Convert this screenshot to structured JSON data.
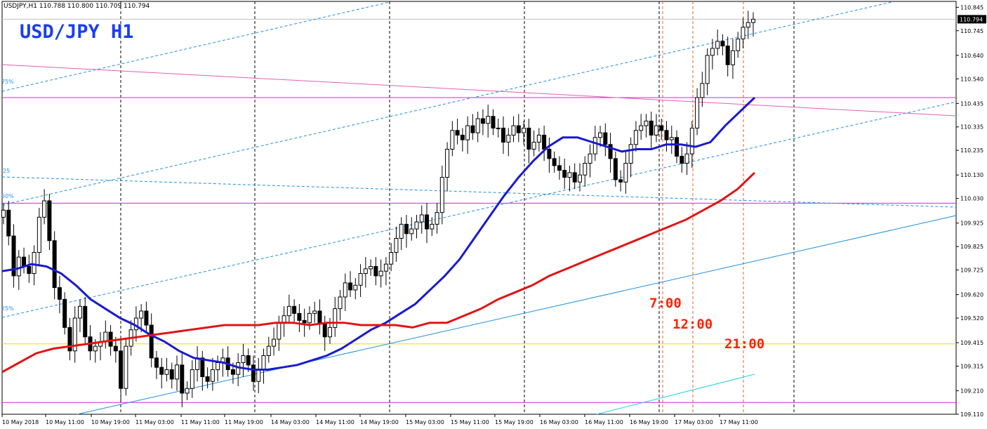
{
  "header": {
    "symbol_line": "USDJPY,H1  110.788 110.800 110.709 110.794",
    "big_title": "USD/JPY  H1"
  },
  "annotations": {
    "t1": "7:00",
    "t2": "12:00",
    "t3": "21:00",
    "fib_75": "75%",
    "fib_25a": "25",
    "fib_50": "50%",
    "fib_25b": "25%"
  },
  "colors": {
    "ma_fast": "#1a1acd",
    "ma_slow": "#e01414",
    "magenta": "#e020e0",
    "pink": "#e060b0",
    "yellow": "#e8e000",
    "grid_dash": "#000000",
    "red_dash": "#e06030",
    "channel": "#1e8fe0",
    "cyan": "#20d0e8"
  },
  "chart_data": {
    "type": "candlestick",
    "symbol": "USDJPY",
    "timeframe": "H1",
    "ohlc_last": {
      "open": 110.788,
      "high": 110.8,
      "low": 110.709,
      "close": 110.794
    },
    "current_price": 110.794,
    "ylim": [
      109.11,
      110.87
    ],
    "y_ticks": [
      110.845,
      110.745,
      110.64,
      110.54,
      110.435,
      110.335,
      110.235,
      110.13,
      110.03,
      109.925,
      109.825,
      109.725,
      109.62,
      109.52,
      109.415,
      109.315,
      109.21,
      109.11
    ],
    "x_tick_labels": [
      "10 May 2018",
      "10 May 11:00",
      "10 May 19:00",
      "11 May 03:00",
      "11 May 11:00",
      "11 May 19:00",
      "14 May 03:00",
      "14 May 11:00",
      "14 May 19:00",
      "15 May 03:00",
      "15 May 11:00",
      "15 May 19:00",
      "16 May 03:00",
      "16 May 11:00",
      "16 May 19:00",
      "17 May 03:00",
      "17 May 11:00"
    ],
    "closes": [
      109.98,
      109.87,
      109.7,
      109.78,
      109.74,
      109.71,
      109.8,
      109.95,
      110.02,
      109.85,
      109.65,
      109.6,
      109.48,
      109.38,
      109.52,
      109.57,
      109.44,
      109.38,
      109.4,
      109.42,
      109.46,
      109.4,
      109.38,
      109.22,
      109.4,
      109.47,
      109.52,
      109.55,
      109.49,
      109.35,
      109.31,
      109.28,
      109.3,
      109.26,
      109.32,
      109.2,
      109.22,
      109.3,
      109.35,
      109.27,
      109.25,
      109.3,
      109.33,
      109.35,
      109.3,
      109.28,
      109.33,
      109.36,
      109.32,
      109.25,
      109.3,
      109.36,
      109.4,
      109.43,
      109.5,
      109.53,
      109.57,
      109.54,
      109.51,
      109.5,
      109.54,
      109.55,
      109.5,
      109.44,
      109.48,
      109.56,
      109.61,
      109.67,
      109.64,
      109.66,
      109.71,
      109.73,
      109.74,
      109.7,
      109.72,
      109.75,
      109.8,
      109.86,
      109.92,
      109.88,
      109.9,
      109.93,
      109.96,
      109.9,
      109.92,
      109.97,
      110.12,
      110.24,
      110.32,
      110.3,
      110.28,
      110.34,
      110.31,
      110.37,
      110.35,
      110.38,
      110.33,
      110.33,
      110.27,
      110.3,
      110.34,
      110.31,
      110.33,
      110.24,
      110.27,
      110.3,
      110.24,
      110.2,
      110.17,
      110.15,
      110.12,
      110.14,
      110.1,
      110.13,
      110.18,
      110.22,
      110.29,
      110.31,
      110.26,
      110.2,
      110.11,
      110.1,
      110.18,
      110.26,
      110.32,
      110.34,
      110.36,
      110.3,
      110.34,
      110.32,
      110.28,
      110.29,
      110.21,
      110.18,
      110.22,
      110.33,
      110.46,
      110.52,
      110.64,
      110.67,
      110.7,
      110.68,
      110.6,
      110.66,
      110.71,
      110.76,
      110.78,
      110.794
    ],
    "series": [
      {
        "name": "",
        "color": "#1a1acd",
        "values": [
          109.72,
          109.73,
          109.75,
          109.74,
          109.71,
          109.66,
          109.6,
          109.56,
          109.52,
          109.49,
          109.45,
          109.42,
          109.38,
          109.35,
          109.34,
          109.33,
          109.31,
          109.3,
          109.3,
          109.31,
          109.32,
          109.34,
          109.36,
          109.39,
          109.43,
          109.47,
          109.5,
          109.54,
          109.58,
          109.64,
          109.7,
          109.77,
          109.86,
          109.95,
          110.04,
          110.12,
          110.19,
          110.25,
          110.29,
          110.29,
          110.27,
          110.25,
          110.23,
          110.24,
          110.24,
          110.26,
          110.26,
          110.25,
          110.27,
          110.34,
          110.4,
          110.46
        ]
      },
      {
        "name": "",
        "color": "#e01414",
        "values": [
          109.29,
          109.33,
          109.37,
          109.39,
          109.4,
          109.41,
          109.42,
          109.43,
          109.44,
          109.45,
          109.46,
          109.47,
          109.48,
          109.49,
          109.49,
          109.49,
          109.5,
          109.5,
          109.49,
          109.5,
          109.5,
          109.49,
          109.49,
          109.49,
          109.48,
          109.5,
          109.5,
          109.53,
          109.56,
          109.6,
          109.63,
          109.66,
          109.7,
          109.73,
          109.76,
          109.79,
          109.82,
          109.85,
          109.88,
          109.91,
          109.94,
          109.98,
          110.02,
          110.07,
          110.14
        ]
      }
    ],
    "horizontal_lines": [
      {
        "price": 110.794,
        "color": "#c0c0c0"
      },
      {
        "price": 110.46,
        "color": "#e020e0"
      },
      {
        "price": 110.01,
        "color": "#e020e0"
      },
      {
        "price": 109.41,
        "color": "#e8e000"
      },
      {
        "price": 109.16,
        "color": "#e020e0"
      }
    ]
  }
}
